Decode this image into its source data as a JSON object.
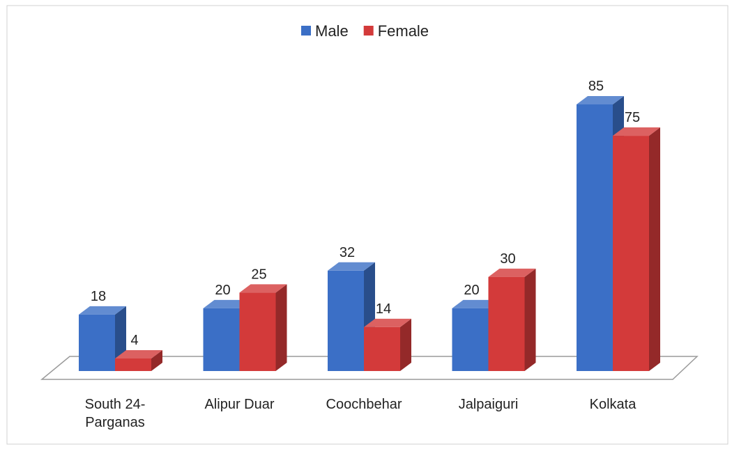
{
  "chart_data": {
    "type": "bar3d",
    "categories": [
      "South 24-Parganas",
      "Alipur Duar",
      "Coochbehar",
      "Jalpaiguri",
      "Kolkata"
    ],
    "series": [
      {
        "name": "Male",
        "color": "#3b6fc6",
        "values": [
          18,
          20,
          32,
          20,
          85
        ]
      },
      {
        "name": "Female",
        "color": "#d33a3a",
        "values": [
          4,
          25,
          14,
          30,
          75
        ]
      }
    ],
    "legend": "top"
  }
}
